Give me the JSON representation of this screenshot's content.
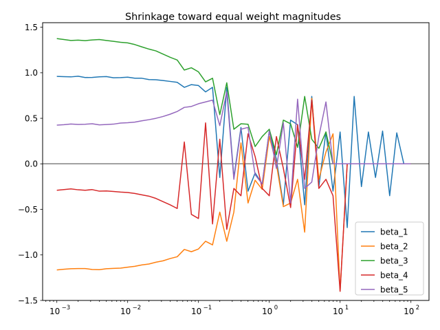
{
  "chart_data": {
    "type": "line",
    "title": "Shrinkage toward equal weight magnitudes",
    "xlabel": "",
    "ylabel": "",
    "xscale": "log",
    "xlim": [
      0.00063,
      180
    ],
    "ylim": [
      -1.5,
      1.55
    ],
    "x_ticks": [
      {
        "value": 0.001,
        "label": "10",
        "exp": "−3"
      },
      {
        "value": 0.01,
        "label": "10",
        "exp": "−2"
      },
      {
        "value": 0.1,
        "label": "10",
        "exp": "−1"
      },
      {
        "value": 1,
        "label": "10",
        "exp": "0"
      },
      {
        "value": 10,
        "label": "10",
        "exp": "1"
      },
      {
        "value": 100,
        "label": "10",
        "exp": "2"
      }
    ],
    "y_ticks": [
      {
        "value": 1.5,
        "label": "1.5"
      },
      {
        "value": 1.0,
        "label": "1.0"
      },
      {
        "value": 0.5,
        "label": "0.5"
      },
      {
        "value": 0.0,
        "label": "0.0"
      },
      {
        "value": -0.5,
        "label": "−0.5"
      },
      {
        "value": -1.0,
        "label": "−1.0"
      },
      {
        "value": -1.5,
        "label": "−1.5"
      }
    ],
    "hline": {
      "y": 0,
      "color": "#808080"
    },
    "grid": false,
    "legend": "lower-right",
    "x": [
      0.001,
      0.00126,
      0.00158,
      0.002,
      0.00251,
      0.00316,
      0.00398,
      0.00501,
      0.00631,
      0.00794,
      0.01,
      0.0126,
      0.0158,
      0.02,
      0.0251,
      0.0316,
      0.0398,
      0.0501,
      0.0631,
      0.0794,
      0.1,
      0.126,
      0.158,
      0.2,
      0.251,
      0.316,
      0.398,
      0.501,
      0.631,
      0.794,
      1.0,
      1.26,
      1.58,
      2.0,
      2.51,
      3.16,
      3.98,
      5.01,
      6.31,
      7.94,
      10.0,
      12.6,
      15.8,
      20.0,
      25.1,
      31.6,
      39.8,
      50.1,
      63.1,
      79.4,
      100.0
    ],
    "series": [
      {
        "name": "beta_1",
        "color": "#1f77b4",
        "values": [
          0.96,
          0.957,
          0.955,
          0.962,
          0.948,
          0.949,
          0.955,
          0.958,
          0.945,
          0.947,
          0.952,
          0.94,
          0.94,
          0.925,
          0.923,
          0.915,
          0.905,
          0.895,
          0.84,
          0.87,
          0.86,
          0.79,
          0.84,
          -0.15,
          0.84,
          -0.15,
          0.4,
          -0.3,
          -0.1,
          -0.22,
          0.36,
          0.05,
          -0.45,
          0.48,
          0.43,
          -0.45,
          0.74,
          -0.25,
          0.35,
          -0.3,
          0.35,
          -0.7,
          0.74,
          -0.25,
          0.35,
          -0.15,
          0.36,
          -0.35,
          0.34,
          0.0,
          0.0
        ]
      },
      {
        "name": "beta_2",
        "color": "#ff7f0e",
        "values": [
          -1.165,
          -1.157,
          -1.152,
          -1.15,
          -1.15,
          -1.16,
          -1.162,
          -1.152,
          -1.148,
          -1.145,
          -1.135,
          -1.125,
          -1.11,
          -1.1,
          -1.08,
          -1.065,
          -1.04,
          -1.02,
          -0.94,
          -0.965,
          -0.935,
          -0.85,
          -0.89,
          -0.53,
          -0.85,
          -0.53,
          0.23,
          -0.43,
          -0.18,
          -0.28,
          0.3,
          0.0,
          -0.47,
          -0.43,
          -0.17,
          -0.75,
          0.72,
          -0.17,
          0.13,
          0.33,
          -1.4,
          0.0,
          0.0,
          0.0,
          0.0,
          0.0,
          0.0,
          0.0,
          0.0,
          0.0,
          0.0
        ]
      },
      {
        "name": "beta_3",
        "color": "#2ca02c",
        "values": [
          1.375,
          1.365,
          1.355,
          1.358,
          1.353,
          1.36,
          1.365,
          1.355,
          1.345,
          1.335,
          1.328,
          1.31,
          1.285,
          1.26,
          1.24,
          1.205,
          1.17,
          1.14,
          1.03,
          1.055,
          1.01,
          0.9,
          0.94,
          0.54,
          0.89,
          0.38,
          0.44,
          0.435,
          0.19,
          0.3,
          0.38,
          0.1,
          0.48,
          0.44,
          0.18,
          0.74,
          0.27,
          0.17,
          0.35,
          0.0,
          0.0,
          0.0,
          0.0,
          0.0,
          0.0,
          0.0,
          0.0,
          0.0,
          0.0,
          0.0,
          0.0
        ]
      },
      {
        "name": "beta_4",
        "color": "#d62728",
        "values": [
          -0.29,
          -0.283,
          -0.275,
          -0.285,
          -0.29,
          -0.283,
          -0.3,
          -0.298,
          -0.303,
          -0.31,
          -0.315,
          -0.325,
          -0.34,
          -0.355,
          -0.38,
          -0.415,
          -0.45,
          -0.49,
          0.24,
          -0.555,
          -0.6,
          0.45,
          -0.66,
          0.27,
          -0.72,
          -0.27,
          -0.35,
          0.33,
          0.08,
          -0.27,
          -0.35,
          0.3,
          -0.05,
          -0.48,
          0.43,
          -0.17,
          0.7,
          -0.27,
          -0.17,
          -0.35,
          -1.4,
          0.0,
          0.0,
          0.0,
          0.0,
          0.0,
          0.0,
          0.0,
          0.0,
          0.0,
          0.0
        ]
      },
      {
        "name": "beta_5",
        "color": "#9467bd",
        "values": [
          0.425,
          0.43,
          0.437,
          0.433,
          0.435,
          0.44,
          0.428,
          0.432,
          0.436,
          0.448,
          0.452,
          0.458,
          0.472,
          0.485,
          0.5,
          0.52,
          0.545,
          0.575,
          0.62,
          0.63,
          0.66,
          0.68,
          0.7,
          0.42,
          0.79,
          -0.17,
          0.38,
          0.4,
          -0.12,
          -0.22,
          0.36,
          -0.05,
          0.45,
          -0.43,
          0.71,
          -0.27,
          -0.2,
          0.3,
          0.68,
          0.0,
          0.0,
          0.0,
          0.0,
          0.0,
          0.0,
          0.0,
          0.0,
          0.0,
          0.0,
          0.0,
          0.0
        ]
      }
    ]
  }
}
